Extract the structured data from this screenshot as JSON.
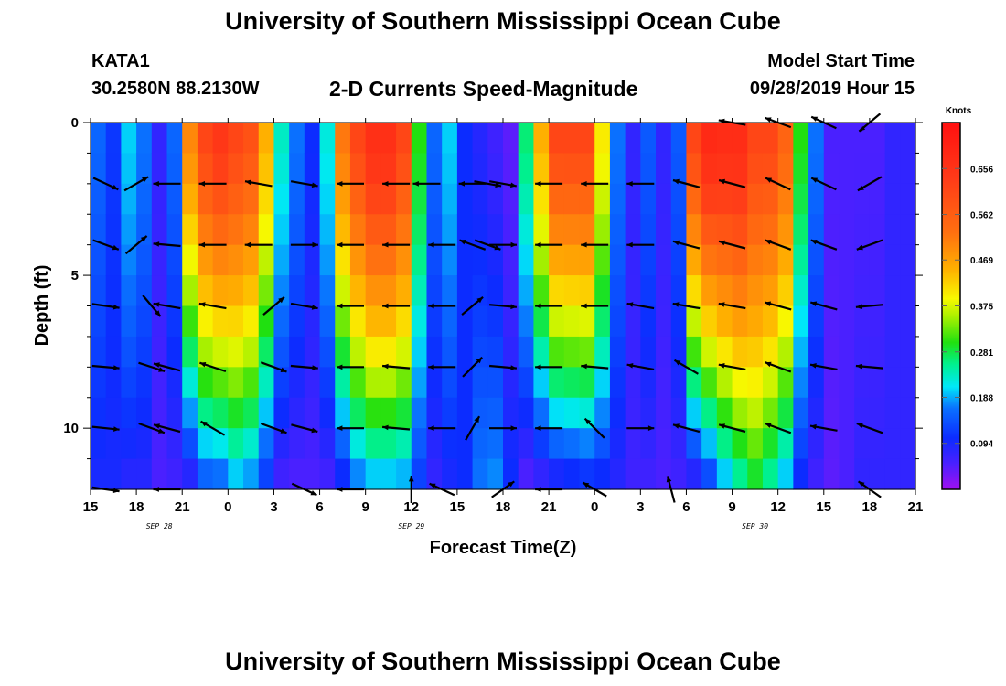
{
  "header": {
    "title": "University of Southern Mississippi Ocean Cube",
    "footer_title": "University of Southern Mississippi Ocean Cube",
    "station": "KATA1",
    "coordinates": "30.2580N 88.2130W",
    "subtitle": "2-D Currents Speed-Magnitude",
    "model_start_label": "Model Start Time",
    "model_start_value": "09/28/2019 Hour 15"
  },
  "chart_data": {
    "type": "heatmap",
    "title": "2-D Currents Speed-Magnitude",
    "xlabel": "Forecast Time(Z)",
    "ylabel": "Depth (ft)",
    "colorbar_label": "Knots",
    "colorbar_ticks": [
      "0.656",
      "0.562",
      "0.469",
      "0.375",
      "0.281",
      "0.188",
      "0.094"
    ],
    "colorbar_values": [
      0.656,
      0.562,
      0.469,
      0.375,
      0.281,
      0.188,
      0.094
    ],
    "colorbar_range": [
      0,
      0.75
    ],
    "x_hours_range": [
      0,
      54
    ],
    "x_tick_hours": [
      0,
      3,
      6,
      9,
      12,
      15,
      18,
      21,
      24,
      27,
      30,
      33,
      36,
      39,
      42,
      45,
      48,
      51,
      54
    ],
    "x_tick_labels": [
      "15",
      "18",
      "21",
      "0",
      "3",
      "6",
      "9",
      "12",
      "15",
      "18",
      "21",
      "0",
      "3",
      "6",
      "9",
      "12",
      "15",
      "18",
      "21"
    ],
    "date_labels": [
      {
        "hour": 4.5,
        "text": "SEP 28"
      },
      {
        "hour": 21,
        "text": "SEP 29"
      },
      {
        "hour": 43.5,
        "text": "SEP 30"
      }
    ],
    "y_range": [
      0,
      12
    ],
    "y_tick_values": [
      0,
      5,
      10
    ],
    "y_tick_labels": [
      "0",
      "5",
      "10"
    ],
    "y_minor_ticks": [
      1,
      2,
      3,
      4,
      6,
      7,
      8,
      9,
      11
    ],
    "column_hours": [
      0,
      1,
      2,
      3,
      4,
      5,
      6,
      7,
      8,
      9,
      10,
      11,
      12,
      13,
      14,
      15,
      16,
      17,
      18,
      19,
      20,
      21,
      22,
      23,
      24,
      25,
      26,
      27,
      28,
      29,
      30,
      31,
      32,
      33,
      34,
      35,
      36,
      37,
      38,
      39,
      40,
      41,
      42,
      43,
      44,
      45,
      46,
      47,
      48,
      49,
      50,
      51,
      52,
      53
    ],
    "row_depths": [
      0,
      1,
      2,
      3,
      4,
      5,
      6,
      7,
      8,
      9,
      10,
      11
    ],
    "speed_surface": [
      0.15,
      0.11,
      0.2,
      0.16,
      0.07,
      0.15,
      0.5,
      0.6,
      0.63,
      0.6,
      0.58,
      0.45,
      0.23,
      0.16,
      0.1,
      0.22,
      0.52,
      0.6,
      0.65,
      0.65,
      0.6,
      0.3,
      0.15,
      0.2,
      0.1,
      0.08,
      0.06,
      0.04,
      0.26,
      0.45,
      0.6,
      0.6,
      0.6,
      0.4,
      0.16,
      0.07,
      0.14,
      0.07,
      0.14,
      0.6,
      0.67,
      0.66,
      0.66,
      0.6,
      0.6,
      0.55,
      0.3,
      0.16,
      0.05,
      0.05,
      0.05,
      0.05,
      0.07,
      0.07
    ],
    "speed_bottom": [
      0.09,
      0.09,
      0.08,
      0.08,
      0.05,
      0.06,
      0.08,
      0.15,
      0.16,
      0.2,
      0.18,
      0.12,
      0.06,
      0.05,
      0.05,
      0.06,
      0.1,
      0.17,
      0.2,
      0.2,
      0.19,
      0.12,
      0.07,
      0.09,
      0.1,
      0.16,
      0.17,
      0.1,
      0.05,
      0.07,
      0.09,
      0.1,
      0.11,
      0.1,
      0.08,
      0.06,
      0.06,
      0.05,
      0.06,
      0.08,
      0.13,
      0.2,
      0.25,
      0.29,
      0.25,
      0.2,
      0.1,
      0.06,
      0.04,
      0.05,
      0.07,
      0.07,
      0.07,
      0.07
    ],
    "vector_columns_hours": [
      1,
      4,
      6,
      9,
      12,
      15,
      18,
      21,
      24,
      27,
      30,
      33,
      36,
      39,
      42,
      45,
      48,
      51,
      53
    ],
    "vector_rows_depth": [
      0,
      2,
      4,
      6,
      8,
      10,
      12
    ],
    "vectors": [
      {
        "hour": 1,
        "depth": 2,
        "angle": 205,
        "speed": 0.3
      },
      {
        "hour": 1,
        "depth": 4,
        "angle": 200,
        "speed": 0.3
      },
      {
        "hour": 1,
        "depth": 6,
        "angle": 188,
        "speed": 0.24
      },
      {
        "hour": 1,
        "depth": 8,
        "angle": 185,
        "speed": 0.24
      },
      {
        "hour": 1,
        "depth": 10,
        "angle": 186,
        "speed": 0.24
      },
      {
        "hour": 1,
        "depth": 12,
        "angle": 188,
        "speed": 0.22
      },
      {
        "hour": 3,
        "depth": 2,
        "angle": 150,
        "speed": 0.45
      },
      {
        "hour": 3,
        "depth": 4,
        "angle": 140,
        "speed": 0.4
      },
      {
        "hour": 4,
        "depth": 6,
        "angle": 230,
        "speed": 0.35
      },
      {
        "hour": 4,
        "depth": 8,
        "angle": 198,
        "speed": 0.28
      },
      {
        "hour": 4,
        "depth": 10,
        "angle": 200,
        "speed": 0.28
      },
      {
        "hour": 5,
        "depth": 2,
        "angle": 0,
        "speed": 0.32
      },
      {
        "hour": 5,
        "depth": 4,
        "angle": 5,
        "speed": 0.32
      },
      {
        "hour": 5,
        "depth": 6,
        "angle": 10,
        "speed": 0.32
      },
      {
        "hour": 5,
        "depth": 8,
        "angle": 15,
        "speed": 0.32
      },
      {
        "hour": 5,
        "depth": 10,
        "angle": 15,
        "speed": 0.32
      },
      {
        "hour": 5,
        "depth": 12,
        "angle": 0,
        "speed": 0.32
      },
      {
        "hour": 8,
        "depth": 2,
        "angle": 0,
        "speed": 0.32
      },
      {
        "hour": 8,
        "depth": 4,
        "angle": 0,
        "speed": 0.32
      },
      {
        "hour": 8,
        "depth": 6,
        "angle": 10,
        "speed": 0.3
      },
      {
        "hour": 8,
        "depth": 8,
        "angle": 18,
        "speed": 0.3
      },
      {
        "hour": 8,
        "depth": 10,
        "angle": 30,
        "speed": 0.32
      },
      {
        "hour": 11,
        "depth": 2,
        "angle": 10,
        "speed": 0.32
      },
      {
        "hour": 11,
        "depth": 4,
        "angle": 0,
        "speed": 0.32
      },
      {
        "hour": 12,
        "depth": 6,
        "angle": 140,
        "speed": 0.3
      },
      {
        "hour": 12,
        "depth": 8,
        "angle": 200,
        "speed": 0.3
      },
      {
        "hour": 12,
        "depth": 10,
        "angle": 200,
        "speed": 0.3
      },
      {
        "hour": 14,
        "depth": 2,
        "angle": 190,
        "speed": 0.32
      },
      {
        "hour": 14,
        "depth": 4,
        "angle": 180,
        "speed": 0.32
      },
      {
        "hour": 14,
        "depth": 6,
        "angle": 190,
        "speed": 0.3
      },
      {
        "hour": 14,
        "depth": 8,
        "angle": 185,
        "speed": 0.3
      },
      {
        "hour": 14,
        "depth": 10,
        "angle": 195,
        "speed": 0.3
      },
      {
        "hour": 14,
        "depth": 12,
        "angle": 205,
        "speed": 0.3
      },
      {
        "hour": 17,
        "depth": 2,
        "angle": 0,
        "speed": 0.32
      },
      {
        "hour": 17,
        "depth": 4,
        "angle": 0,
        "speed": 0.32
      },
      {
        "hour": 17,
        "depth": 6,
        "angle": 0,
        "speed": 0.32
      },
      {
        "hour": 17,
        "depth": 8,
        "angle": 0,
        "speed": 0.32
      },
      {
        "hour": 17,
        "depth": 10,
        "angle": 0,
        "speed": 0.32
      },
      {
        "hour": 17,
        "depth": 12,
        "angle": 0,
        "speed": 0.32
      },
      {
        "hour": 20,
        "depth": 2,
        "angle": 0,
        "speed": 0.32
      },
      {
        "hour": 20,
        "depth": 4,
        "angle": 0,
        "speed": 0.32
      },
      {
        "hour": 20,
        "depth": 6,
        "angle": 0,
        "speed": 0.32
      },
      {
        "hour": 20,
        "depth": 8,
        "angle": 5,
        "speed": 0.32
      },
      {
        "hour": 20,
        "depth": 10,
        "angle": 5,
        "speed": 0.32
      },
      {
        "hour": 21,
        "depth": 12,
        "angle": 90,
        "speed": 0.32
      },
      {
        "hour": 22,
        "depth": 2,
        "angle": 0,
        "speed": 0.32
      },
      {
        "hour": 23,
        "depth": 4,
        "angle": 0,
        "speed": 0.28
      },
      {
        "hour": 23,
        "depth": 6,
        "angle": 0,
        "speed": 0.28
      },
      {
        "hour": 23,
        "depth": 8,
        "angle": 0,
        "speed": 0.28
      },
      {
        "hour": 23,
        "depth": 10,
        "angle": 0,
        "speed": 0.28
      },
      {
        "hour": 23,
        "depth": 12,
        "angle": 25,
        "speed": 0.32
      },
      {
        "hour": 25,
        "depth": 2,
        "angle": 0,
        "speed": 0.32
      },
      {
        "hour": 25,
        "depth": 4,
        "angle": 20,
        "speed": 0.32
      },
      {
        "hour": 25,
        "depth": 6,
        "angle": 140,
        "speed": 0.32
      },
      {
        "hour": 25,
        "depth": 8,
        "angle": 135,
        "speed": 0.3
      },
      {
        "hour": 25,
        "depth": 10,
        "angle": 120,
        "speed": 0.3
      },
      {
        "hour": 26,
        "depth": 2,
        "angle": 190,
        "speed": 0.32
      },
      {
        "hour": 26,
        "depth": 4,
        "angle": 200,
        "speed": 0.32
      },
      {
        "hour": 27,
        "depth": 2,
        "angle": 190,
        "speed": 0.32
      },
      {
        "hour": 27,
        "depth": 4,
        "angle": 180,
        "speed": 0.32
      },
      {
        "hour": 27,
        "depth": 6,
        "angle": 185,
        "speed": 0.32
      },
      {
        "hour": 27,
        "depth": 8,
        "angle": 185,
        "speed": 0.32
      },
      {
        "hour": 27,
        "depth": 10,
        "angle": 180,
        "speed": 0.32
      },
      {
        "hour": 27,
        "depth": 12,
        "angle": 145,
        "speed": 0.32
      },
      {
        "hour": 30,
        "depth": 2,
        "angle": 0,
        "speed": 0.32
      },
      {
        "hour": 30,
        "depth": 4,
        "angle": 0,
        "speed": 0.32
      },
      {
        "hour": 30,
        "depth": 6,
        "angle": 0,
        "speed": 0.32
      },
      {
        "hour": 30,
        "depth": 8,
        "angle": 0,
        "speed": 0.32
      },
      {
        "hour": 30,
        "depth": 10,
        "angle": 0,
        "speed": 0.32
      },
      {
        "hour": 30,
        "depth": 12,
        "angle": 0,
        "speed": 0.32
      },
      {
        "hour": 33,
        "depth": 2,
        "angle": 0,
        "speed": 0.32
      },
      {
        "hour": 33,
        "depth": 4,
        "angle": 0,
        "speed": 0.32
      },
      {
        "hour": 33,
        "depth": 6,
        "angle": 0,
        "speed": 0.32
      },
      {
        "hour": 33,
        "depth": 8,
        "angle": 5,
        "speed": 0.32
      },
      {
        "hour": 33,
        "depth": 10,
        "angle": 45,
        "speed": 0.32
      },
      {
        "hour": 33,
        "depth": 12,
        "angle": 30,
        "speed": 0.32
      },
      {
        "hour": 36,
        "depth": 2,
        "angle": 0,
        "speed": 0.32
      },
      {
        "hour": 36,
        "depth": 4,
        "angle": 0,
        "speed": 0.32
      },
      {
        "hour": 36,
        "depth": 6,
        "angle": 10,
        "speed": 0.3
      },
      {
        "hour": 36,
        "depth": 8,
        "angle": 10,
        "speed": 0.3
      },
      {
        "hour": 36,
        "depth": 10,
        "angle": 180,
        "speed": 0.3
      },
      {
        "hour": 38,
        "depth": 12,
        "angle": 75,
        "speed": 0.35
      },
      {
        "hour": 39,
        "depth": 2,
        "angle": 15,
        "speed": 0.32
      },
      {
        "hour": 39,
        "depth": 4,
        "angle": 15,
        "speed": 0.32
      },
      {
        "hour": 39,
        "depth": 6,
        "angle": 10,
        "speed": 0.32
      },
      {
        "hour": 39,
        "depth": 8,
        "angle": 30,
        "speed": 0.32
      },
      {
        "hour": 39,
        "depth": 10,
        "angle": 15,
        "speed": 0.32
      },
      {
        "hour": 42,
        "depth": 0,
        "angle": 10,
        "speed": 0.32
      },
      {
        "hour": 42,
        "depth": 2,
        "angle": 15,
        "speed": 0.32
      },
      {
        "hour": 42,
        "depth": 4,
        "angle": 15,
        "speed": 0.32
      },
      {
        "hour": 42,
        "depth": 6,
        "angle": 10,
        "speed": 0.32
      },
      {
        "hour": 42,
        "depth": 8,
        "angle": 10,
        "speed": 0.32
      },
      {
        "hour": 42,
        "depth": 10,
        "angle": 15,
        "speed": 0.32
      },
      {
        "hour": 45,
        "depth": 0,
        "angle": 20,
        "speed": 0.32
      },
      {
        "hour": 45,
        "depth": 2,
        "angle": 25,
        "speed": 0.32
      },
      {
        "hour": 45,
        "depth": 4,
        "angle": 20,
        "speed": 0.32
      },
      {
        "hour": 45,
        "depth": 6,
        "angle": 15,
        "speed": 0.32
      },
      {
        "hour": 45,
        "depth": 8,
        "angle": 20,
        "speed": 0.32
      },
      {
        "hour": 45,
        "depth": 10,
        "angle": 20,
        "speed": 0.32
      },
      {
        "hour": 48,
        "depth": 0,
        "angle": 25,
        "speed": 0.32
      },
      {
        "hour": 48,
        "depth": 2,
        "angle": 25,
        "speed": 0.32
      },
      {
        "hour": 48,
        "depth": 4,
        "angle": 20,
        "speed": 0.32
      },
      {
        "hour": 48,
        "depth": 6,
        "angle": 15,
        "speed": 0.32
      },
      {
        "hour": 48,
        "depth": 8,
        "angle": 10,
        "speed": 0.32
      },
      {
        "hour": 48,
        "depth": 10,
        "angle": 10,
        "speed": 0.32
      },
      {
        "hour": 51,
        "depth": 0,
        "angle": 320,
        "speed": 0.35
      },
      {
        "hour": 51,
        "depth": 2,
        "angle": 330,
        "speed": 0.35
      },
      {
        "hour": 51,
        "depth": 4,
        "angle": 340,
        "speed": 0.32
      },
      {
        "hour": 51,
        "depth": 6,
        "angle": 355,
        "speed": 0.32
      },
      {
        "hour": 51,
        "depth": 8,
        "angle": 5,
        "speed": 0.32
      },
      {
        "hour": 51,
        "depth": 10,
        "angle": 20,
        "speed": 0.32
      },
      {
        "hour": 51,
        "depth": 12,
        "angle": 35,
        "speed": 0.32
      }
    ]
  }
}
